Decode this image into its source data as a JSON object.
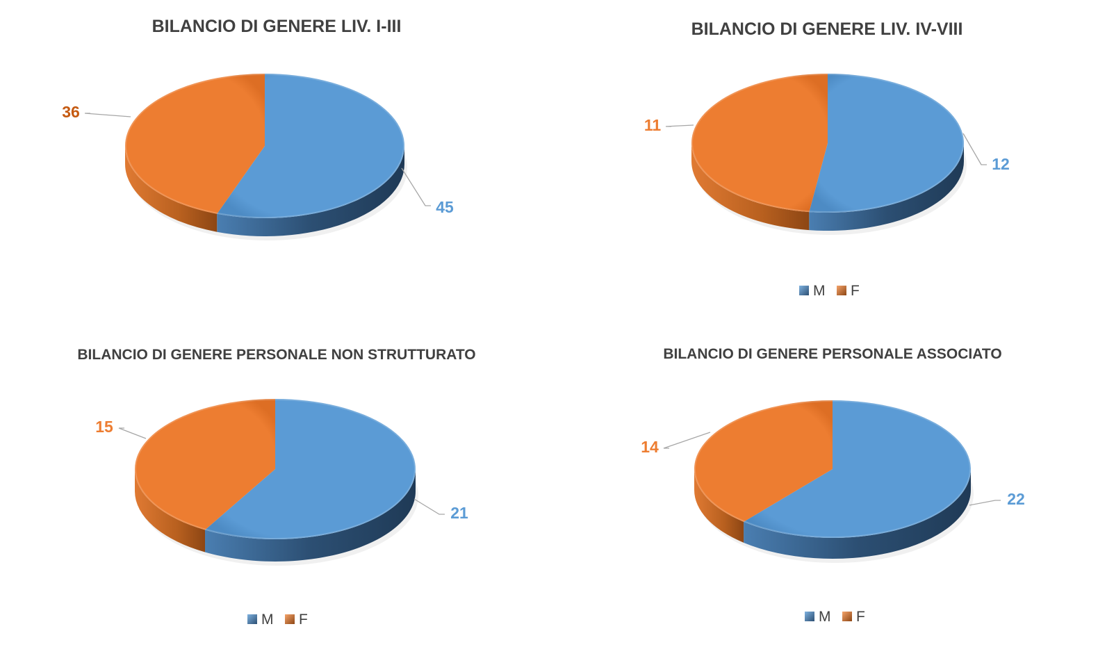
{
  "colors": {
    "M": "#5b9bd5",
    "F": "#ed7d31",
    "title": "#404040",
    "leader": "#a6a6a6"
  },
  "chart_data": [
    {
      "type": "pie",
      "title": "BILANCIO DI GENERE LIV. I-III",
      "categories": [
        "M",
        "F"
      ],
      "values": [
        45,
        36
      ],
      "data_labels": [
        "45",
        "36"
      ],
      "legend": null,
      "three_d": true
    },
    {
      "type": "pie",
      "title": "BILANCIO DI GENERE LIV. IV-VIII",
      "categories": [
        "M",
        "F"
      ],
      "values": [
        12,
        11
      ],
      "data_labels": [
        "12",
        "11"
      ],
      "legend": {
        "position": "bottom",
        "entries": [
          "M",
          "F"
        ]
      },
      "three_d": true
    },
    {
      "type": "pie",
      "title": "BILANCIO DI GENERE PERSONALE NON STRUTTURATO",
      "categories": [
        "M",
        "F"
      ],
      "values": [
        21,
        15
      ],
      "data_labels": [
        "21",
        "15"
      ],
      "legend": {
        "position": "bottom",
        "entries": [
          "M",
          "F"
        ]
      },
      "three_d": true
    },
    {
      "type": "pie",
      "title": "BILANCIO DI GENERE PERSONALE ASSOCIATO",
      "categories": [
        "M",
        "F"
      ],
      "values": [
        22,
        14
      ],
      "data_labels": [
        "22",
        "14"
      ],
      "legend": {
        "position": "bottom",
        "entries": [
          "M",
          "F"
        ]
      },
      "three_d": true
    }
  ]
}
